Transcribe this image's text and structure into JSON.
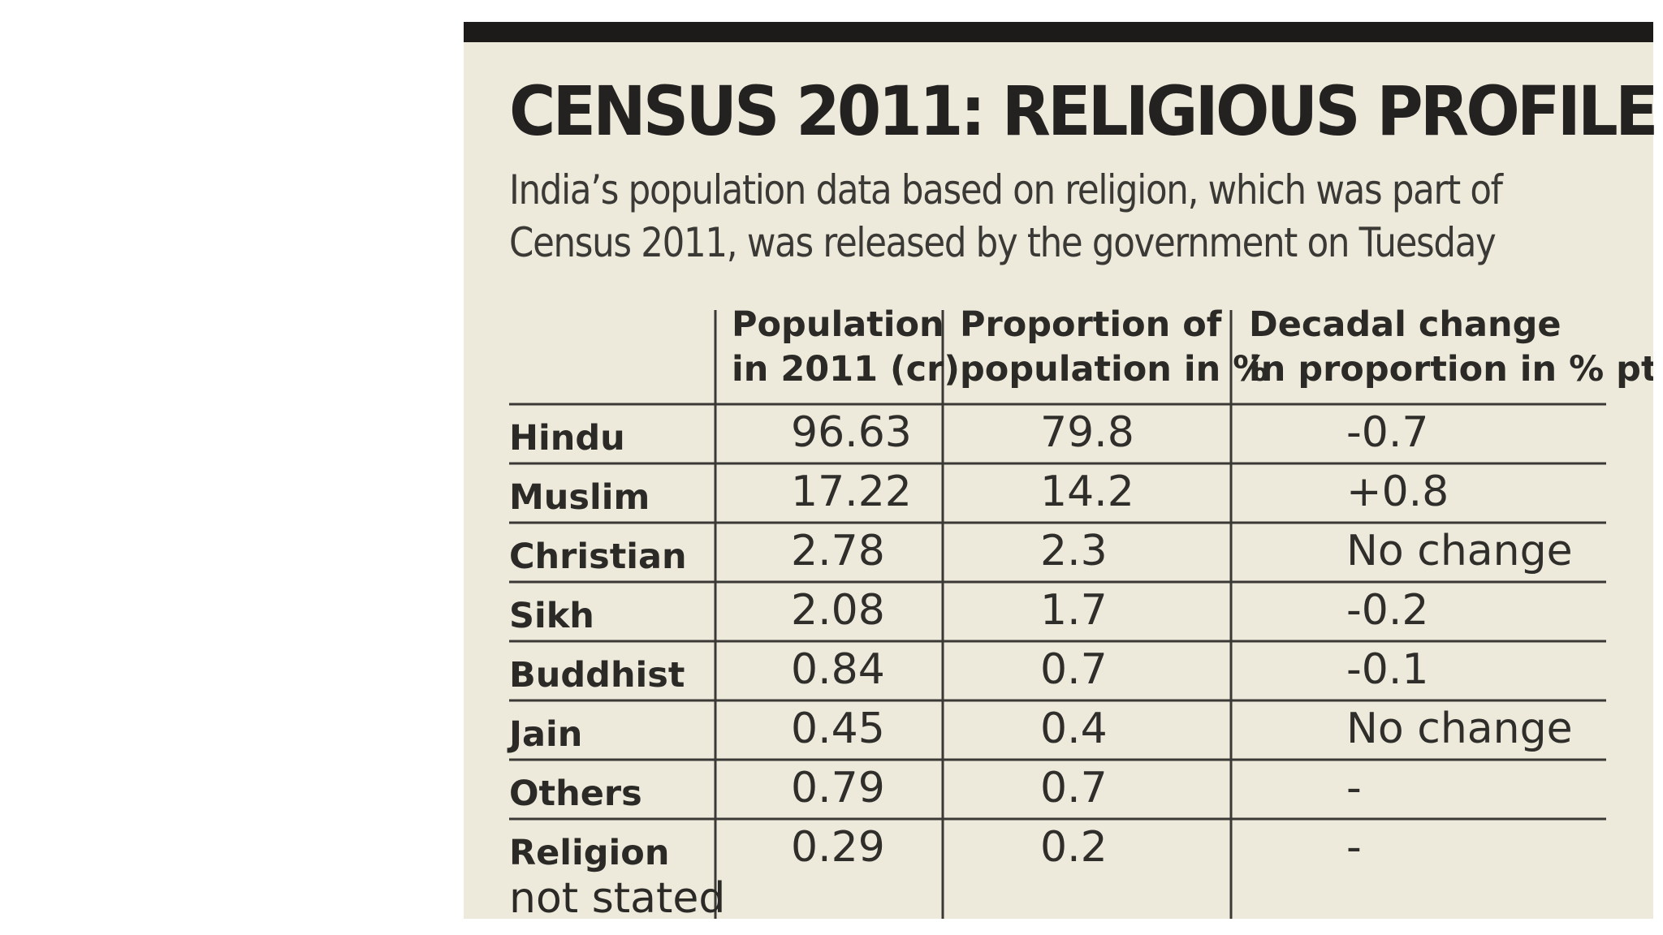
{
  "chart_data": {
    "type": "table",
    "title": "CENSUS 2011: RELIGIOUS PROFILE",
    "subtitle": "India’s population data based on religion, which was part of Census 2011, was released by the government on Tuesday",
    "columns": [
      {
        "line1": "Population",
        "line2": "in 2011 (cr)"
      },
      {
        "line1": "Proportion of",
        "line2": "population in %"
      },
      {
        "line1": "Decadal change",
        "line2": "in proportion in % pts"
      }
    ],
    "rows": [
      {
        "label": "Hindu",
        "population": "96.63",
        "proportion": "79.8",
        "change": "-0.7"
      },
      {
        "label": "Muslim",
        "population": "17.22",
        "proportion": "14.2",
        "change": "+0.8"
      },
      {
        "label": "Christian",
        "population": "2.78",
        "proportion": "2.3",
        "change": "No change"
      },
      {
        "label": "Sikh",
        "population": "2.08",
        "proportion": "1.7",
        "change": "-0.2"
      },
      {
        "label": "Buddhist",
        "population": "0.84",
        "proportion": "0.7",
        "change": "-0.1"
      },
      {
        "label": "Jain",
        "population": "0.45",
        "proportion": "0.4",
        "change": "No change"
      },
      {
        "label": "Others",
        "population": "0.79",
        "proportion": "0.7",
        "change": "-"
      },
      {
        "label": "Religion",
        "label2": "not stated",
        "population": "0.29",
        "proportion": "0.2",
        "change": "-"
      }
    ]
  }
}
